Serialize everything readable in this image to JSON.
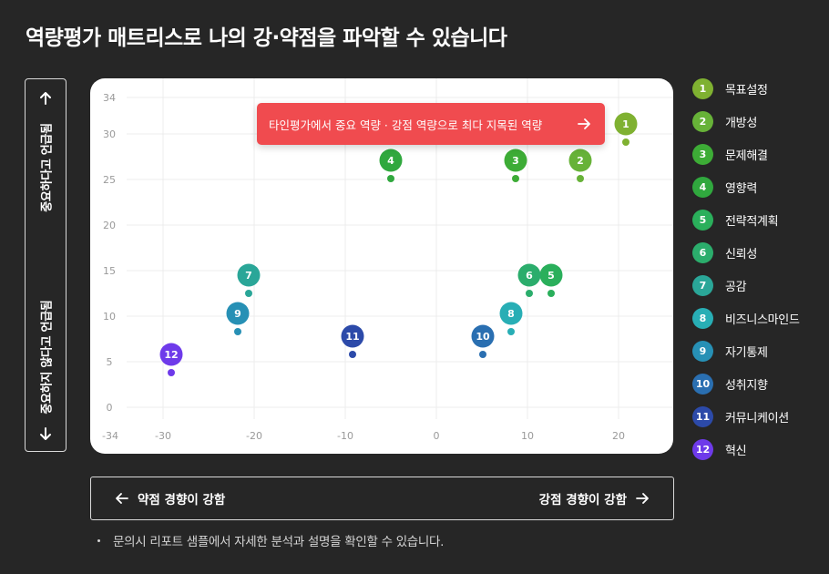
{
  "title": "역량평가 매트리스로 나의 강·약점을 파악할 수 있습니다",
  "y_axis_box": {
    "top_label": "중요하다고 언급됨",
    "bottom_label": "중요하지 않다고 언급됨"
  },
  "banner": {
    "text": "타인평가에서 중요 역량 · 강점 역량으로 최다 지목된 역량"
  },
  "x_axis_box": {
    "left_label": "약점 경향이 강함",
    "right_label": "강점 경향이 강함"
  },
  "note": "문의시 리포트 샘플에서 자세한 분석과 설명을 확인할 수 있습니다.",
  "colors": {
    "background": "#262626",
    "card": "#ffffff",
    "banner": "#f04b4f",
    "grid": "#ececec"
  },
  "legend": [
    {
      "num": "1",
      "label": "목표설정",
      "color": "#7fb131"
    },
    {
      "num": "2",
      "label": "개방성",
      "color": "#67b238"
    },
    {
      "num": "3",
      "label": "문제해결",
      "color": "#3dac36"
    },
    {
      "num": "4",
      "label": "영향력",
      "color": "#30a83e"
    },
    {
      "num": "5",
      "label": "전략적계획",
      "color": "#2aaf5b"
    },
    {
      "num": "6",
      "label": "신뢰성",
      "color": "#2bad6c"
    },
    {
      "num": "7",
      "label": "공감",
      "color": "#2aa698"
    },
    {
      "num": "8",
      "label": "비즈니스마인드",
      "color": "#28aeb5"
    },
    {
      "num": "9",
      "label": "자기통제",
      "color": "#2790b5"
    },
    {
      "num": "10",
      "label": "성취지향",
      "color": "#2a6fb1"
    },
    {
      "num": "11",
      "label": "커뮤니케이션",
      "color": "#2c4aa9"
    },
    {
      "num": "12",
      "label": "혁신",
      "color": "#6e3aea"
    }
  ],
  "chart_data": {
    "type": "scatter",
    "x_ticks": [
      "-34",
      "-30",
      "-20",
      "-10",
      "0",
      "10",
      "20"
    ],
    "y_ticks": [
      "0",
      "5",
      "10",
      "15",
      "20",
      "25",
      "30",
      "34"
    ],
    "xlim": [
      -34,
      26
    ],
    "ylim": [
      -3,
      34
    ],
    "grid": true,
    "points": [
      {
        "label": "1",
        "x": 20.8,
        "y": 29.1
      },
      {
        "label": "2",
        "x": 15.8,
        "y": 25.1
      },
      {
        "label": "3",
        "x": 8.7,
        "y": 25.1
      },
      {
        "label": "4",
        "x": -5.0,
        "y": 25.1
      },
      {
        "label": "5",
        "x": 12.6,
        "y": 12.5
      },
      {
        "label": "6",
        "x": 10.2,
        "y": 12.5
      },
      {
        "label": "7",
        "x": -20.6,
        "y": 12.5
      },
      {
        "label": "8",
        "x": 8.2,
        "y": 8.3
      },
      {
        "label": "9",
        "x": -21.8,
        "y": 8.3
      },
      {
        "label": "10",
        "x": 5.1,
        "y": 5.8
      },
      {
        "label": "11",
        "x": -9.2,
        "y": 5.8
      },
      {
        "label": "12",
        "x": -29.1,
        "y": 3.8
      }
    ]
  }
}
